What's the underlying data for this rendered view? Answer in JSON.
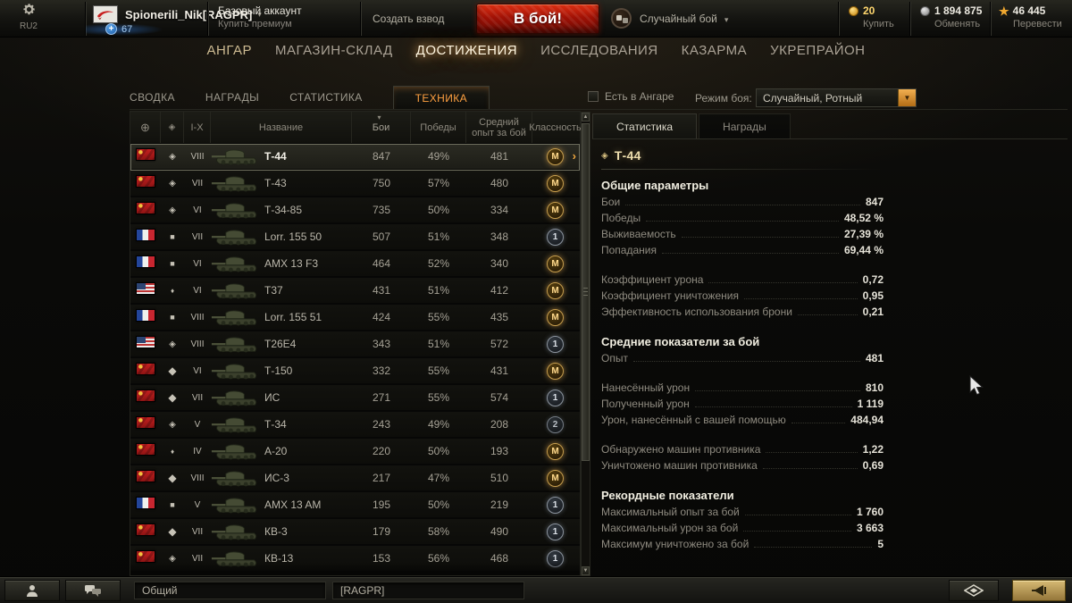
{
  "topbar": {
    "server": "RU2",
    "player_name": "Spionerili_Nik[RAGPR]",
    "player_level": "67",
    "account_type": "Базовый аккаунт",
    "buy_premium": "Купить премиум",
    "create_platoon": "Создать взвод",
    "battle_button": "В бой!",
    "battle_mode": "Случайный бой",
    "gold": {
      "value": "20",
      "action": "Купить"
    },
    "credits": {
      "value": "1 894 875",
      "action": "Обменять"
    },
    "free_xp": {
      "value": "46 445",
      "action": "Перевести"
    }
  },
  "nav": {
    "items": [
      {
        "label": "АНГАР",
        "active": false
      },
      {
        "label": "МАГАЗИН-СКЛАД",
        "active": false
      },
      {
        "label": "ДОСТИЖЕНИЯ",
        "active": true
      },
      {
        "label": "ИССЛЕДОВАНИЯ",
        "active": false
      },
      {
        "label": "КАЗАРМА",
        "active": false
      },
      {
        "label": "УКРЕПРАЙОН",
        "active": false
      }
    ]
  },
  "subtabs": {
    "items": [
      {
        "label": "СВОДКА",
        "active": false
      },
      {
        "label": "НАГРАДЫ",
        "active": false
      },
      {
        "label": "СТАТИСТИКА",
        "active": false
      },
      {
        "label": "ТЕХНИКА",
        "active": true
      }
    ],
    "hangar_filter_label": "Есть в Ангаре",
    "battle_mode_label": "Режим боя:",
    "battle_mode_value": "Случайный, Ротный"
  },
  "table": {
    "headers": {
      "tier": "I-X",
      "name": "Название",
      "battles": "Бои",
      "wins": "Победы",
      "avg_xp": "Средний опыт за бой",
      "mastery": "Классность"
    },
    "rows": [
      {
        "nation": "ussr",
        "type": "medium",
        "tier": "VIII",
        "name": "Т-44",
        "battles": "847",
        "wins": "49%",
        "avg_xp": "481",
        "badge": "M",
        "selected": true
      },
      {
        "nation": "ussr",
        "type": "medium",
        "tier": "VII",
        "name": "Т-43",
        "battles": "750",
        "wins": "57%",
        "avg_xp": "480",
        "badge": "M",
        "selected": false
      },
      {
        "nation": "ussr",
        "type": "medium",
        "tier": "VI",
        "name": "Т-34-85",
        "battles": "735",
        "wins": "50%",
        "avg_xp": "334",
        "badge": "M",
        "selected": false
      },
      {
        "nation": "france",
        "type": "spg",
        "tier": "VII",
        "name": "Lorr. 155 50",
        "battles": "507",
        "wins": "51%",
        "avg_xp": "348",
        "badge": "1",
        "selected": false
      },
      {
        "nation": "france",
        "type": "spg",
        "tier": "VI",
        "name": "AMX 13 F3",
        "battles": "464",
        "wins": "52%",
        "avg_xp": "340",
        "badge": "M",
        "selected": false
      },
      {
        "nation": "usa",
        "type": "light",
        "tier": "VI",
        "name": "T37",
        "battles": "431",
        "wins": "51%",
        "avg_xp": "412",
        "badge": "M",
        "selected": false
      },
      {
        "nation": "france",
        "type": "spg",
        "tier": "VIII",
        "name": "Lorr. 155 51",
        "battles": "424",
        "wins": "55%",
        "avg_xp": "435",
        "badge": "M",
        "selected": false
      },
      {
        "nation": "usa",
        "type": "medium",
        "tier": "VIII",
        "name": "T26E4",
        "battles": "343",
        "wins": "51%",
        "avg_xp": "572",
        "badge": "1",
        "selected": false
      },
      {
        "nation": "ussr",
        "type": "heavy",
        "tier": "VI",
        "name": "Т-150",
        "battles": "332",
        "wins": "55%",
        "avg_xp": "431",
        "badge": "M",
        "selected": false
      },
      {
        "nation": "ussr",
        "type": "heavy",
        "tier": "VII",
        "name": "ИС",
        "battles": "271",
        "wins": "55%",
        "avg_xp": "574",
        "badge": "1",
        "selected": false
      },
      {
        "nation": "ussr",
        "type": "medium",
        "tier": "V",
        "name": "Т-34",
        "battles": "243",
        "wins": "49%",
        "avg_xp": "208",
        "badge": "2",
        "selected": false
      },
      {
        "nation": "ussr",
        "type": "light",
        "tier": "IV",
        "name": "А-20",
        "battles": "220",
        "wins": "50%",
        "avg_xp": "193",
        "badge": "M",
        "selected": false
      },
      {
        "nation": "ussr",
        "type": "heavy",
        "tier": "VIII",
        "name": "ИС-3",
        "battles": "217",
        "wins": "47%",
        "avg_xp": "510",
        "badge": "M",
        "selected": false
      },
      {
        "nation": "france",
        "type": "spg",
        "tier": "V",
        "name": "AMX 13 AM",
        "battles": "195",
        "wins": "50%",
        "avg_xp": "219",
        "badge": "1",
        "selected": false
      },
      {
        "nation": "ussr",
        "type": "heavy",
        "tier": "VII",
        "name": "КВ-3",
        "battles": "179",
        "wins": "58%",
        "avg_xp": "490",
        "badge": "1",
        "selected": false
      },
      {
        "nation": "ussr",
        "type": "medium",
        "tier": "VII",
        "name": "КВ-13",
        "battles": "153",
        "wins": "56%",
        "avg_xp": "468",
        "badge": "1",
        "selected": false
      }
    ]
  },
  "panel": {
    "tabs": [
      {
        "label": "Статистика",
        "active": true
      },
      {
        "label": "Награды",
        "active": false
      }
    ],
    "vehicle": "Т-44",
    "groups": [
      {
        "header": "Общие параметры",
        "rows": [
          {
            "label": "Бои",
            "value": "847"
          },
          {
            "label": "Победы",
            "value": "48,52 %"
          },
          {
            "label": "Выживаемость",
            "value": "27,39 %"
          },
          {
            "label": "Попадания",
            "value": "69,44 %"
          }
        ]
      },
      {
        "header": "",
        "rows": [
          {
            "label": "Коэффициент урона",
            "value": "0,72"
          },
          {
            "label": "Коэффициент уничтожения",
            "value": "0,95"
          },
          {
            "label": "Эффективность использования брони",
            "value": "0,21"
          }
        ]
      },
      {
        "header": "Средние показатели за бой",
        "rows": [
          {
            "label": "Опыт",
            "value": "481"
          }
        ]
      },
      {
        "header": "",
        "rows": [
          {
            "label": "Нанесённый урон",
            "value": "810"
          },
          {
            "label": "Полученный урон",
            "value": "1 119"
          },
          {
            "label": "Урон, нанесённый с вашей помощью",
            "value": "484,94"
          }
        ]
      },
      {
        "header": "",
        "rows": [
          {
            "label": "Обнаружено машин противника",
            "value": "1,22"
          },
          {
            "label": "Уничтожено машин противника",
            "value": "0,69"
          }
        ]
      },
      {
        "header": "Рекордные показатели",
        "rows": [
          {
            "label": "Максимальный опыт за бой",
            "value": "1 760"
          },
          {
            "label": "Максимальный урон за бой",
            "value": "3 663"
          },
          {
            "label": "Максимум уничтожено за бой",
            "value": "5"
          }
        ]
      }
    ]
  },
  "bottombar": {
    "channel": "Общий",
    "clan": "[RAGPR]"
  },
  "colors": {
    "accent_orange": "#ffa040",
    "gold": "#ffd76e",
    "battle_red": "#b01505",
    "mastery_gold": "#c9a04e",
    "class_silver": "#8d959f"
  }
}
